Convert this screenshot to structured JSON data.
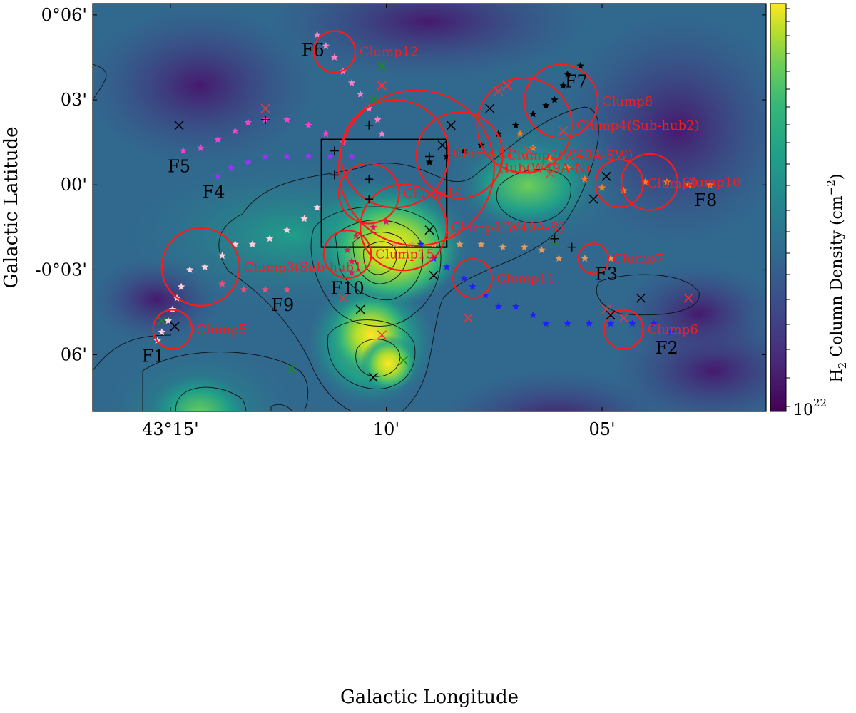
{
  "chart_data": {
    "type": "scatter",
    "xlabel": "Galactic Longitude",
    "ylabel": "Galactic Latitude",
    "colorbar_label": "H$_2$ Column Density (cm$^{-2}$)",
    "colorbar_label_main": "Column Density (cm",
    "colorbar_label_prefix": "H",
    "colorbar_label_sub": "2",
    "colorbar_label_sup": "−2",
    "colorbar_tick_label": "10",
    "colorbar_tick_exp": "22",
    "colormap": "viridis",
    "xlim_arcmin_offset_from_43_10": [
      -6.8,
      8.8
    ],
    "ylim_arcmin": [
      -8.0,
      6.4
    ],
    "x_ticks": [
      {
        "value": 15,
        "label": "43°15'"
      },
      {
        "value": 10,
        "label": "10'"
      },
      {
        "value": 5,
        "label": "05'"
      }
    ],
    "y_ticks": [
      {
        "value": 6,
        "label": "0°06'"
      },
      {
        "value": 3,
        "label": "03'"
      },
      {
        "value": 0,
        "label": "00'"
      },
      {
        "value": -3,
        "label": "-0°03'"
      },
      {
        "value": -6,
        "label": "06'"
      }
    ],
    "clumps": [
      {
        "name": "Clump12",
        "l": 11.2,
        "b": 4.7,
        "r": 0.48
      },
      {
        "name": "Clump8",
        "l": 5.95,
        "b": 2.95,
        "r": 0.85
      },
      {
        "name": "Clump13",
        "l": 9.8,
        "b": 1.1,
        "r": 1.25
      },
      {
        "name": "Clump4(Sub-hub2)",
        "l": 6.8,
        "b": 2.1,
        "r": 1.1
      },
      {
        "name": "Clump2(W49A-SW)",
        "l": 8.3,
        "b": 1.05,
        "r": 1.0
      },
      {
        "name": "Clump10",
        "l": 3.9,
        "b": 0.1,
        "r": 0.65
      },
      {
        "name": "Hub(W49A-N)",
        "l": 9.3,
        "b": 0.6,
        "r": 1.8
      },
      {
        "name": "Clump9",
        "l": 4.6,
        "b": 0.05,
        "r": 0.55
      },
      {
        "name": "Clump14",
        "l": 10.4,
        "b": -0.3,
        "r": 0.7
      },
      {
        "name": "Clump1(W49A-S)",
        "l": 9.6,
        "b": -1.5,
        "r": 1.0
      },
      {
        "name": "Clump3(Sub-hub1)",
        "l": 14.3,
        "b": -2.9,
        "r": 0.9
      },
      {
        "name": "Clump7",
        "l": 5.2,
        "b": -2.6,
        "r": 0.35
      },
      {
        "name": "Clump15",
        "l": 10.9,
        "b": -2.45,
        "r": 0.55
      },
      {
        "name": "Clump11",
        "l": 8.0,
        "b": -3.3,
        "r": 0.45
      },
      {
        "name": "Clump5",
        "l": 14.95,
        "b": -5.1,
        "r": 0.45
      },
      {
        "name": "Clump6",
        "l": 4.5,
        "b": -5.1,
        "r": 0.45
      }
    ],
    "filaments": [
      {
        "name": "F1",
        "color": "#ffd1dc",
        "points": [
          [
            15.3,
            -5.5
          ],
          [
            15.2,
            -5.2
          ],
          [
            15.05,
            -4.8
          ],
          [
            14.95,
            -4.4
          ],
          [
            14.85,
            -4.0
          ],
          [
            14.75,
            -3.6
          ],
          [
            14.55,
            -3.0
          ],
          [
            14.2,
            -2.9
          ],
          [
            13.8,
            -2.5
          ],
          [
            13.5,
            -2.1
          ],
          [
            13.1,
            -2.1
          ],
          [
            12.7,
            -1.9
          ],
          [
            12.3,
            -1.6
          ],
          [
            11.9,
            -1.2
          ],
          [
            11.6,
            -0.8
          ]
        ]
      },
      {
        "name": "F2",
        "color": "#1f1fff",
        "points": [
          [
            3.4,
            -5.2
          ],
          [
            3.8,
            -4.9
          ],
          [
            4.3,
            -4.9
          ],
          [
            4.8,
            -4.9
          ],
          [
            5.3,
            -4.9
          ],
          [
            5.8,
            -4.9
          ],
          [
            6.3,
            -4.9
          ],
          [
            6.6,
            -4.6
          ],
          [
            7.0,
            -4.3
          ],
          [
            7.4,
            -4.3
          ],
          [
            7.7,
            -3.9
          ],
          [
            8.0,
            -3.6
          ],
          [
            8.2,
            -3.3
          ],
          [
            8.6,
            -2.9
          ],
          [
            8.9,
            -2.6
          ],
          [
            9.2,
            -2.1
          ]
        ]
      },
      {
        "name": "F3",
        "color": "#e89a5a",
        "points": [
          [
            4.8,
            -2.6
          ],
          [
            5.4,
            -2.6
          ],
          [
            6.0,
            -2.6
          ],
          [
            6.4,
            -2.3
          ],
          [
            6.8,
            -2.2
          ],
          [
            7.3,
            -2.2
          ],
          [
            7.8,
            -2.1
          ],
          [
            8.3,
            -2.1
          ],
          [
            8.9,
            -2.1
          ],
          [
            9.4,
            -2.1
          ],
          [
            9.8,
            -2.1
          ]
        ]
      },
      {
        "name": "F4",
        "color": "#9b30ff",
        "points": [
          [
            13.9,
            0.3
          ],
          [
            13.6,
            0.6
          ],
          [
            13.2,
            0.8
          ],
          [
            12.8,
            1.0
          ],
          [
            12.3,
            1.0
          ],
          [
            11.8,
            1.0
          ],
          [
            11.3,
            1.0
          ],
          [
            10.8,
            1.0
          ]
        ]
      },
      {
        "name": "F5",
        "color": "#ff3fd0",
        "points": [
          [
            14.7,
            1.2
          ],
          [
            14.3,
            1.3
          ],
          [
            13.9,
            1.6
          ],
          [
            13.5,
            1.9
          ],
          [
            13.2,
            2.2
          ],
          [
            12.8,
            2.3
          ],
          [
            12.3,
            2.3
          ],
          [
            11.8,
            2.1
          ],
          [
            11.4,
            1.8
          ],
          [
            11.0,
            1.5
          ]
        ]
      },
      {
        "name": "F6",
        "color": "#ff7fc8",
        "points": [
          [
            11.6,
            5.3
          ],
          [
            11.4,
            4.9
          ],
          [
            11.2,
            4.5
          ],
          [
            11.0,
            4.0
          ],
          [
            10.8,
            3.6
          ],
          [
            10.6,
            3.2
          ],
          [
            10.4,
            2.7
          ],
          [
            10.2,
            2.3
          ],
          [
            10.1,
            1.8
          ]
        ]
      },
      {
        "name": "F7",
        "color": "#000000",
        "points": [
          [
            5.5,
            4.2
          ],
          [
            5.8,
            3.9
          ],
          [
            5.9,
            3.5
          ],
          [
            6.1,
            3.0
          ],
          [
            6.3,
            2.8
          ],
          [
            6.6,
            2.5
          ],
          [
            7.0,
            2.1
          ],
          [
            7.4,
            1.8
          ],
          [
            7.8,
            1.4
          ],
          [
            8.2,
            1.2
          ],
          [
            8.6,
            1.0
          ],
          [
            9.0,
            0.8
          ]
        ]
      },
      {
        "name": "F8",
        "color": "#ff7a1a",
        "points": [
          [
            2.5,
            0.0
          ],
          [
            3.0,
            0.0
          ],
          [
            3.5,
            0.1
          ],
          [
            4.0,
            0.1
          ],
          [
            4.5,
            -0.2
          ],
          [
            5.0,
            -0.1
          ],
          [
            5.4,
            0.2
          ],
          [
            5.8,
            0.6
          ],
          [
            6.2,
            0.9
          ],
          [
            6.6,
            1.3
          ],
          [
            6.9,
            1.8
          ]
        ]
      },
      {
        "name": "F9",
        "color": "#e8507a",
        "points": [
          [
            12.3,
            -3.7
          ],
          [
            12.8,
            -3.7
          ],
          [
            13.3,
            -3.7
          ],
          [
            13.8,
            -3.5
          ]
        ]
      },
      {
        "name": "F10",
        "color": "#d81b60",
        "points": [
          [
            10.8,
            -3.1
          ],
          [
            10.8,
            -2.7
          ],
          [
            10.9,
            -2.3
          ],
          [
            10.7,
            -1.8
          ],
          [
            10.3,
            -1.5
          ],
          [
            10.0,
            -1.3
          ]
        ]
      }
    ],
    "colorbar_colors": [
      "#440154",
      "#482878",
      "#3e4989",
      "#31688e",
      "#26828e",
      "#1f9e89",
      "#35b779",
      "#6ece58",
      "#b5de2b",
      "#fde725"
    ],
    "box_outline": {
      "l_range": [
        8.6,
        11.5
      ],
      "b_range": [
        -2.2,
        1.6
      ]
    }
  }
}
